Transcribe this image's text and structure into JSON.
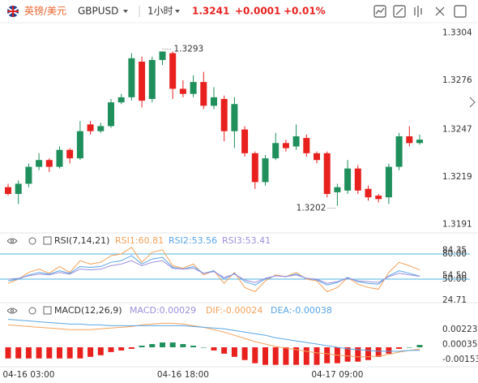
{
  "header": {
    "pair_name": "英镑/美元",
    "symbol": "GBPUSD",
    "interval": "1小时",
    "price": "1.3241",
    "change": "+0.0001",
    "change_pct": "+0.01%"
  },
  "chart_data": [
    {
      "type": "candlestick",
      "up_color": "#1f8f5c",
      "down_color": "#e8211f",
      "open": [
        1.3213,
        1.3209,
        1.3215,
        1.3225,
        1.3229,
        1.3225,
        1.3235,
        1.323,
        1.325,
        1.3246,
        1.3249,
        1.3263,
        1.3266,
        1.3287,
        1.3265,
        1.3288,
        1.3292,
        1.3271,
        1.3268,
        1.3275,
        1.3261,
        1.3265,
        1.3246,
        1.3247,
        1.3233,
        1.3216,
        1.323,
        1.3239,
        1.3237,
        1.3242,
        1.3233,
        1.3233,
        1.321,
        1.3211,
        1.3224,
        1.3212,
        1.3208,
        1.3207,
        1.3225,
        1.3243,
        1.3239
      ],
      "high": [
        1.3215,
        1.3217,
        1.3227,
        1.3233,
        1.323,
        1.3237,
        1.3236,
        1.3252,
        1.3252,
        1.3251,
        1.3265,
        1.3268,
        1.3292,
        1.329,
        1.329,
        1.3293,
        1.3293,
        1.3276,
        1.3279,
        1.3281,
        1.3272,
        1.3267,
        1.3266,
        1.3249,
        1.3234,
        1.3232,
        1.3245,
        1.3241,
        1.325,
        1.3244,
        1.3234,
        1.3234,
        1.3215,
        1.3229,
        1.3226,
        1.3214,
        1.3209,
        1.3227,
        1.3245,
        1.3249,
        1.3244
      ],
      "low": [
        1.3208,
        1.3203,
        1.3213,
        1.3223,
        1.3222,
        1.3224,
        1.3227,
        1.3229,
        1.3244,
        1.3245,
        1.3248,
        1.3262,
        1.3264,
        1.326,
        1.3263,
        1.3285,
        1.3265,
        1.3266,
        1.3266,
        1.3259,
        1.3259,
        1.324,
        1.3236,
        1.3231,
        1.3212,
        1.3214,
        1.3229,
        1.3234,
        1.3235,
        1.3231,
        1.3227,
        1.3207,
        1.3202,
        1.3209,
        1.3209,
        1.3205,
        1.3204,
        1.3203,
        1.3223,
        1.3237,
        1.3238
      ],
      "close": [
        1.3209,
        1.3215,
        1.3225,
        1.3229,
        1.3225,
        1.3235,
        1.323,
        1.3246,
        1.3246,
        1.3249,
        1.3263,
        1.3266,
        1.3289,
        1.3264,
        1.3288,
        1.3293,
        1.3271,
        1.3268,
        1.3275,
        1.3261,
        1.3266,
        1.3246,
        1.3262,
        1.3233,
        1.3216,
        1.323,
        1.3239,
        1.3236,
        1.3243,
        1.3233,
        1.3229,
        1.3209,
        1.3213,
        1.3224,
        1.3211,
        1.3207,
        1.3206,
        1.3225,
        1.3243,
        1.3239,
        1.3241
      ],
      "annotations": [
        "1.3293",
        "1.3202"
      ],
      "ylim": [
        1.3187,
        1.3309
      ],
      "yticks": [
        1.3304,
        1.3276,
        1.3247,
        1.3219,
        1.3191
      ],
      "xticks": [
        {
          "value": 2,
          "label": "04-16 03:00"
        },
        {
          "value": 17,
          "label": "04-16 18:00"
        },
        {
          "value": 32,
          "label": "04-17 09:00"
        }
      ]
    },
    {
      "type": "line",
      "title": "RSI(7,14,21)",
      "ylim": [
        22.9,
        92.6
      ],
      "yticks": [
        {
          "value": 80,
          "label": "80.00"
        },
        84.35,
        {
          "value": 54.5,
          "label": "54.50"
        },
        {
          "value": 50,
          "label": "50.00"
        },
        24.71
      ],
      "reference_lines": [
        80,
        50
      ],
      "reference_color": "#4fb3e0",
      "series": [
        {
          "name": "RSI1:60.81",
          "color": "#f3a15b",
          "values": [
            45,
            50,
            58,
            62,
            57,
            65,
            58,
            72,
            68,
            70,
            78,
            80,
            88,
            70,
            82,
            85,
            66,
            63,
            68,
            55,
            60,
            45,
            58,
            40,
            35,
            48,
            55,
            53,
            58,
            50,
            48,
            35,
            40,
            52,
            44,
            40,
            38,
            58,
            70,
            66,
            60.81
          ]
        },
        {
          "name": "RSI2:53.56",
          "color": "#5aa5e6",
          "values": [
            48,
            50,
            55,
            58,
            56,
            60,
            57,
            65,
            64,
            65,
            70,
            72,
            78,
            68,
            74,
            76,
            64,
            62,
            65,
            57,
            60,
            50,
            57,
            47,
            43,
            50,
            54,
            53,
            56,
            51,
            49,
            43,
            46,
            52,
            47,
            45,
            44,
            54,
            60,
            57,
            53.56
          ]
        },
        {
          "name": "RSI3:53.41",
          "color": "#9d8fdb",
          "values": [
            50,
            51,
            54,
            56,
            55,
            58,
            56,
            62,
            61,
            62,
            66,
            68,
            72,
            66,
            70,
            72,
            63,
            62,
            63,
            57,
            59,
            52,
            56,
            49,
            46,
            51,
            54,
            53,
            55,
            51,
            50,
            45,
            47,
            51,
            48,
            47,
            46,
            53,
            57,
            55,
            53.41
          ]
        }
      ]
    },
    {
      "type": "macd",
      "title": "MACD(12,26,9)",
      "ylim": [
        -0.00244,
        0.00538
      ],
      "yticks": [
        0.00223,
        0.00035,
        -0.00153
      ],
      "histogram": {
        "name": "MACD:0.00029",
        "label_color": "#9d8fdb",
        "up_color": "#1f8f5c",
        "down_color": "#e8211f",
        "values": [
          -0.0014,
          -0.0014,
          -0.0014,
          -0.0014,
          -0.0014,
          -0.0014,
          -0.0014,
          -0.0014,
          -0.0012,
          -0.001,
          -0.0006,
          -0.0004,
          -0.0002,
          0.0002,
          0.0004,
          0.0006,
          0.0006,
          0.0004,
          0.0002,
          0,
          -0.0004,
          -0.0008,
          -0.0012,
          -0.0016,
          -0.002,
          -0.0022,
          -0.0022,
          -0.0022,
          -0.0022,
          -0.0022,
          -0.0022,
          -0.002,
          -0.002,
          -0.0018,
          -0.0018,
          -0.0016,
          -0.0012,
          -0.0008,
          -0.0002,
          0,
          0.00029
        ]
      },
      "series": [
        {
          "name": "DIF:-0.00024",
          "color": "#f3a15b",
          "values": [
            0.0028,
            0.0027,
            0.0026,
            0.0025,
            0.0024,
            0.0023,
            0.0022,
            0.0022,
            0.0022,
            0.0023,
            0.0024,
            0.0025,
            0.0026,
            0.0028,
            0.0029,
            0.003,
            0.003,
            0.0029,
            0.0027,
            0.0025,
            0.0022,
            0.0019,
            0.0015,
            0.0011,
            0.0007,
            0.0004,
            0.0001,
            -0.0001,
            -0.0003,
            -0.0005,
            -0.0007,
            -0.0008,
            -0.001,
            -0.0011,
            -0.0012,
            -0.0012,
            -0.0011,
            -0.0009,
            -0.0006,
            -0.0004,
            -0.00024
          ]
        },
        {
          "name": "DEA:-0.00038",
          "color": "#5aa5e6",
          "values": [
            0.0035,
            0.0034,
            0.0033,
            0.0032,
            0.0031,
            0.003,
            0.0029,
            0.0029,
            0.0028,
            0.0028,
            0.0027,
            0.0027,
            0.0027,
            0.0027,
            0.0027,
            0.0027,
            0.0027,
            0.0027,
            0.0026,
            0.0025,
            0.0024,
            0.0023,
            0.0021,
            0.0019,
            0.0017,
            0.0015,
            0.0012,
            0.001,
            0.0008,
            0.0006,
            0.0004,
            0.0002,
            0,
            -0.0002,
            -0.0003,
            -0.0004,
            -0.0005,
            -0.0005,
            -0.0005,
            -0.0004,
            -0.00038
          ]
        }
      ]
    }
  ]
}
